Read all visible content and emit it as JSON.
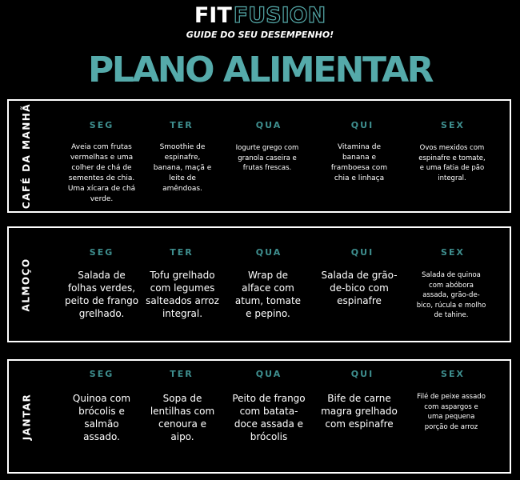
{
  "brand": {
    "fit": "FIT",
    "fusion": "FUSION",
    "tagline": "GUIDE DO SEU DESEMPENHO!"
  },
  "title": "PLANO ALIMENTAR",
  "colors": {
    "accent": "#55aaaa",
    "day_heading": "#3e8e8e",
    "background": "#000000",
    "text": "#ffffff"
  },
  "sections": [
    {
      "label": "CAFÉ DA MANHÃ",
      "days": [
        "SEG",
        "TER",
        "QUA",
        "QUI",
        "SEX"
      ],
      "meals": [
        "Aveia com frutas vermelhas e uma colher de chá de sementes de chia. Uma xícara de chá verde.",
        "Smoothie de espinafre, banana, maçã e leite de amêndoas.",
        "Iogurte grego com granola caseira e frutas frescas.",
        "Vitamina de banana e framboesa com chia e linhaça",
        "Ovos mexidos com espinafre e tomate, e uma fatia de pão integral."
      ]
    },
    {
      "label": "ALMOÇO",
      "days": [
        "SEG",
        "TER",
        "QUA",
        "QUI",
        "SEX"
      ],
      "meals": [
        "Salada de folhas verdes, peito de frango grelhado.",
        "Tofu grelhado com legumes salteados arroz integral.",
        "Wrap de alface com atum, tomate e pepino.",
        "Salada de grão-de-bico com espinafre",
        "Salada de quinoa com abóbora assada, grão-de-bico, rúcula e molho de tahine."
      ]
    },
    {
      "label": "JANTAR",
      "days": [
        "SEG",
        "TER",
        "QUA",
        "QUI",
        "SEX"
      ],
      "meals": [
        "Quinoa com brócolis e salmão assado.",
        "Sopa de lentilhas com cenoura e aipo.",
        "Peito de frango com batata-doce assada e brócolis",
        "Bife de carne magra grelhado com espinafre",
        "Filé de peixe assado com aspargos e uma pequena porção de arroz"
      ]
    }
  ]
}
